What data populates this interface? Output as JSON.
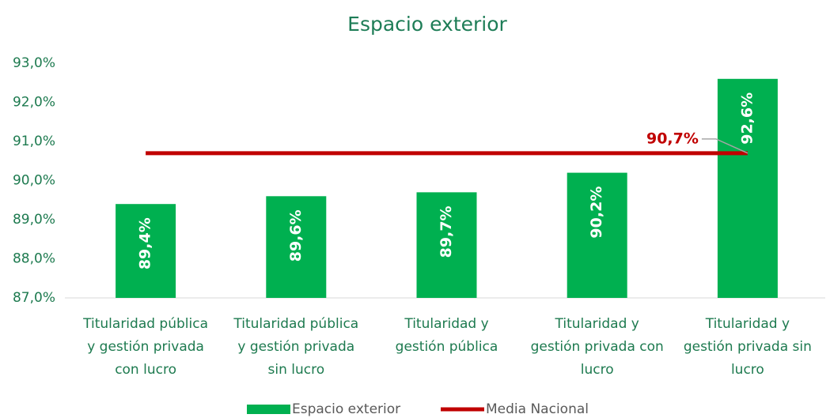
{
  "chart_data": {
    "type": "bar-line",
    "title": "Espacio exterior",
    "categories": [
      "Titularidad pública y gestión privada con lucro",
      "Titularidad pública y gestión privada sin lucro",
      "Titularidad y gestión pública",
      "Titularidad y gestión privada con lucro",
      "Titularidad y gestión privada sin lucro"
    ],
    "series": [
      {
        "name": "Espacio exterior",
        "type": "bar",
        "color": "#00b050",
        "values": [
          89.4,
          89.6,
          89.7,
          90.2,
          92.6
        ],
        "value_labels": [
          "89,4%",
          "89,6%",
          "89,7%",
          "90,2%",
          "92,6%"
        ]
      },
      {
        "name": "Media Nacional",
        "type": "line",
        "color": "#c00000",
        "values": [
          90.7,
          90.7,
          90.7,
          90.7,
          90.7
        ],
        "value_labels": [
          null,
          null,
          null,
          null,
          "90,7%"
        ]
      }
    ],
    "ylim": [
      87,
      93
    ],
    "yticks": [
      {
        "value": 87,
        "label": "87,0%"
      },
      {
        "value": 88,
        "label": "88,0%"
      },
      {
        "value": 89,
        "label": "89,0%"
      },
      {
        "value": 90,
        "label": "90,0%"
      },
      {
        "value": 91,
        "label": "91,0%"
      },
      {
        "value": 92,
        "label": "92,0%"
      },
      {
        "value": 93,
        "label": "93,0%"
      }
    ],
    "grid": false,
    "legend": "bottom"
  }
}
